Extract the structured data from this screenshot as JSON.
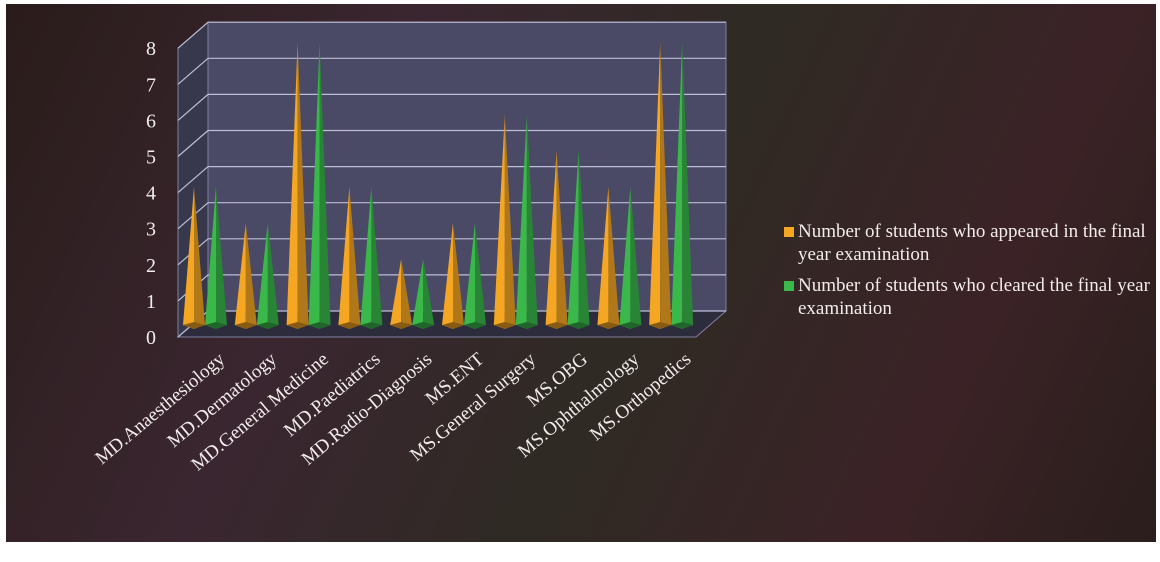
{
  "chart_data": {
    "type": "bar",
    "categories": [
      "MD.Anaesthesiology",
      "MD.Dermatology",
      "MD.General Medicine",
      "MD.Paediatrics",
      "MD.Radio-Diagnosis",
      "MS.ENT",
      "MS.General Surgery",
      "MS.OBG",
      "MS.Ophthalmology",
      "MS.Orthopedics"
    ],
    "series": [
      {
        "name": "Number of students who appeared in the final year examination",
        "values": [
          4,
          3,
          8,
          4,
          2,
          3,
          6,
          5,
          4,
          8
        ],
        "color": "#f5a623"
      },
      {
        "name": "Number of students who cleared the final year examination",
        "values": [
          4,
          3,
          8,
          4,
          2,
          3,
          6,
          5,
          4,
          8
        ],
        "color": "#3bb84a"
      }
    ],
    "yticks": [
      "0",
      "1",
      "2",
      "3",
      "4",
      "5",
      "6",
      "7",
      "8"
    ],
    "ylim": [
      0,
      8
    ],
    "grid": true,
    "legend_position": "right",
    "style": "3d-cone"
  },
  "colors": {
    "background": "#2e2224",
    "plot_wall": "#4a4a66",
    "gridline": "#bdbdd6",
    "text": "#f2ecec"
  }
}
